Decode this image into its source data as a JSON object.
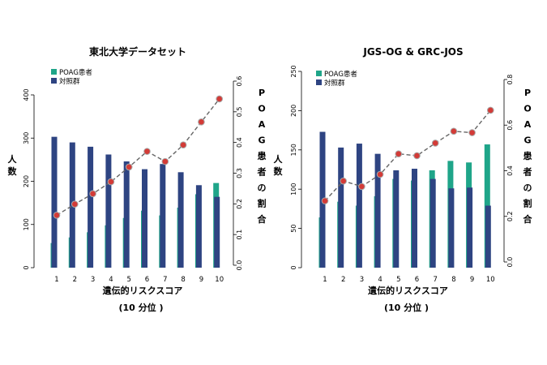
{
  "colors": {
    "poag": "#1fa589",
    "control": "#2e4482",
    "ratio_line": "#666666",
    "ratio_point": "#d33b37",
    "ratio_point_edge": "#a9a9a9",
    "axis": "#000000",
    "background": "#ffffff"
  },
  "chart_data": [
    {
      "type": "bar",
      "title": "東北大学データセット",
      "xlabel": "遺伝的リスクスコア",
      "xlabel_sub": "(10 分位 )",
      "ylabel": "人\n数",
      "y2label": "POAG患者の割合",
      "categories": [
        "1",
        "2",
        "3",
        "4",
        "5",
        "6",
        "7",
        "8",
        "9",
        "10"
      ],
      "ylim": [
        0,
        400
      ],
      "yticks": [
        0,
        100,
        200,
        300,
        400
      ],
      "y2lim": [
        0,
        0.6
      ],
      "y2ticks": [
        "0.0",
        "0.1",
        "0.2",
        "0.3",
        "0.4",
        "0.5",
        "0.6"
      ],
      "legend_position": "top-left",
      "series": [
        {
          "name": "POAG患者",
          "color_key": "poag",
          "values": [
            57,
            70,
            82,
            98,
            115,
            132,
            121,
            139,
            170,
            196
          ]
        },
        {
          "name": "対照群",
          "color_key": "control",
          "values": [
            303,
            290,
            280,
            262,
            246,
            228,
            240,
            221,
            191,
            164
          ]
        }
      ],
      "ratio": [
        0.163,
        0.199,
        0.233,
        0.272,
        0.32,
        0.371,
        0.338,
        0.392,
        0.467,
        0.542
      ]
    },
    {
      "type": "bar",
      "title": "JGS-OG & GRC-JOS",
      "xlabel": "遺伝的リスクスコア",
      "xlabel_sub": "(10 分位 )",
      "ylabel": "人\n数",
      "y2label": "POAG患者の割合",
      "categories": [
        "1",
        "2",
        "3",
        "4",
        "5",
        "6",
        "7",
        "8",
        "9",
        "10"
      ],
      "ylim": [
        0,
        250
      ],
      "yticks": [
        0,
        50,
        100,
        150,
        200,
        250
      ],
      "y2lim": [
        0,
        0.8
      ],
      "y2ticks": [
        "0.0",
        "0.2",
        "0.4",
        "0.6",
        "0.8"
      ],
      "legend_position": "top-left",
      "series": [
        {
          "name": "POAG患者",
          "color_key": "poag",
          "values": [
            64,
            84,
            79,
            91,
            113,
            111,
            124,
            136,
            134,
            157
          ]
        },
        {
          "name": "対照群",
          "color_key": "control",
          "values": [
            173,
            153,
            158,
            145,
            124,
            126,
            113,
            101,
            102,
            79
          ]
        }
      ],
      "ratio": [
        0.268,
        0.355,
        0.331,
        0.384,
        0.474,
        0.466,
        0.521,
        0.573,
        0.567,
        0.665
      ]
    }
  ]
}
